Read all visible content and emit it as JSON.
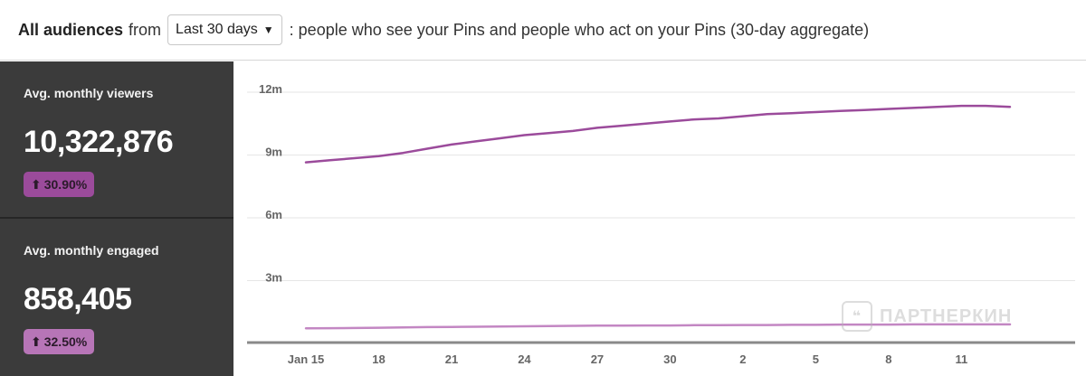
{
  "header": {
    "title": "All audiences",
    "from": "from",
    "range_selected": "Last 30 days",
    "description": ": people who see your Pins and people who act on your Pins (30-day aggregate)"
  },
  "metrics": [
    {
      "label": "Avg. monthly viewers",
      "value": "10,322,876",
      "change": "30.90%",
      "color": "#9b4b9b"
    },
    {
      "label": "Avg. monthly engaged",
      "value": "858,405",
      "change": "32.50%",
      "color": "#b775b7"
    }
  ],
  "watermark": "ПАРТНЕРКИН",
  "chart_data": {
    "type": "line",
    "y_ticks": [
      "12m",
      "9m",
      "6m",
      "3m"
    ],
    "y_tick_values": [
      12000000,
      9000000,
      6000000,
      3000000
    ],
    "ylim": [
      0,
      13000000
    ],
    "x_ticks": [
      "Jan 15",
      "18",
      "21",
      "24",
      "27",
      "30",
      "2",
      "5",
      "8",
      "11"
    ],
    "x_tick_index": [
      0,
      3,
      6,
      9,
      12,
      15,
      18,
      21,
      24,
      27
    ],
    "series": [
      {
        "color": "#9b4b9b",
        "values": [
          8.65,
          8.75,
          8.85,
          8.95,
          9.1,
          9.3,
          9.5,
          9.65,
          9.8,
          9.95,
          10.05,
          10.15,
          10.3,
          10.4,
          10.5,
          10.6,
          10.7,
          10.75,
          10.85,
          10.95,
          11.0,
          11.05,
          11.1,
          11.15,
          11.2,
          11.25,
          11.3,
          11.35,
          11.35,
          11.3
        ]
      },
      {
        "color": "#c387c3",
        "values": [
          0.72,
          0.73,
          0.74,
          0.75,
          0.77,
          0.78,
          0.79,
          0.8,
          0.81,
          0.82,
          0.83,
          0.84,
          0.85,
          0.85,
          0.86,
          0.86,
          0.87,
          0.87,
          0.88,
          0.88,
          0.89,
          0.89,
          0.9,
          0.9,
          0.9,
          0.91,
          0.91,
          0.91,
          0.91,
          0.91
        ]
      }
    ],
    "value_unit": "millions",
    "grid": true
  }
}
